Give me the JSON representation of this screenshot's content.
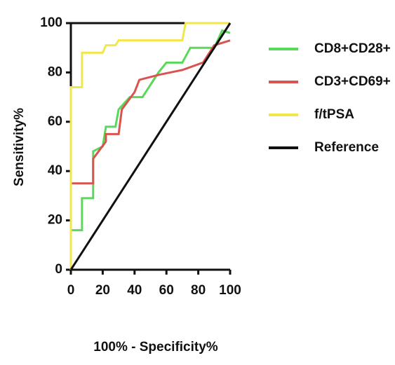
{
  "chart_data": {
    "type": "line",
    "xlabel": "100% - Specificity%",
    "ylabel": "Sensitivity%",
    "xlim": [
      0,
      100
    ],
    "ylim": [
      0,
      100
    ],
    "xticks": [
      0,
      20,
      40,
      60,
      80,
      100
    ],
    "yticks": [
      0,
      20,
      40,
      60,
      80,
      100
    ],
    "legend": "right",
    "series": [
      {
        "name": "CD8+CD28+",
        "color": "#5ad85a",
        "x": [
          0,
          0,
          7,
          7,
          14,
          14,
          20,
          22,
          28,
          30,
          37,
          45,
          50,
          55,
          60,
          70,
          75,
          90,
          95,
          100
        ],
        "values": [
          0,
          16,
          16,
          29,
          29,
          48,
          50,
          58,
          58,
          65,
          70,
          70,
          75,
          80,
          84,
          84,
          90,
          90,
          97,
          96
        ]
      },
      {
        "name": "CD3+CD69+",
        "color": "#d9534f",
        "x": [
          0,
          14,
          14,
          22,
          22,
          30,
          32,
          40,
          43,
          55,
          70,
          83,
          90,
          100
        ],
        "values": [
          35,
          35,
          45,
          52,
          55,
          55,
          65,
          72,
          77,
          79,
          81,
          84,
          91,
          93
        ]
      },
      {
        "name": "f/tPSA",
        "color": "#f2e64a",
        "x": [
          0,
          0,
          7,
          7,
          20,
          22,
          28,
          30,
          70,
          72,
          100
        ],
        "values": [
          0,
          74,
          74,
          88,
          88,
          91,
          91,
          93,
          93,
          100,
          100
        ]
      },
      {
        "name": "Reference",
        "color": "#111111",
        "x": [
          0,
          100
        ],
        "values": [
          0,
          100
        ]
      }
    ]
  }
}
